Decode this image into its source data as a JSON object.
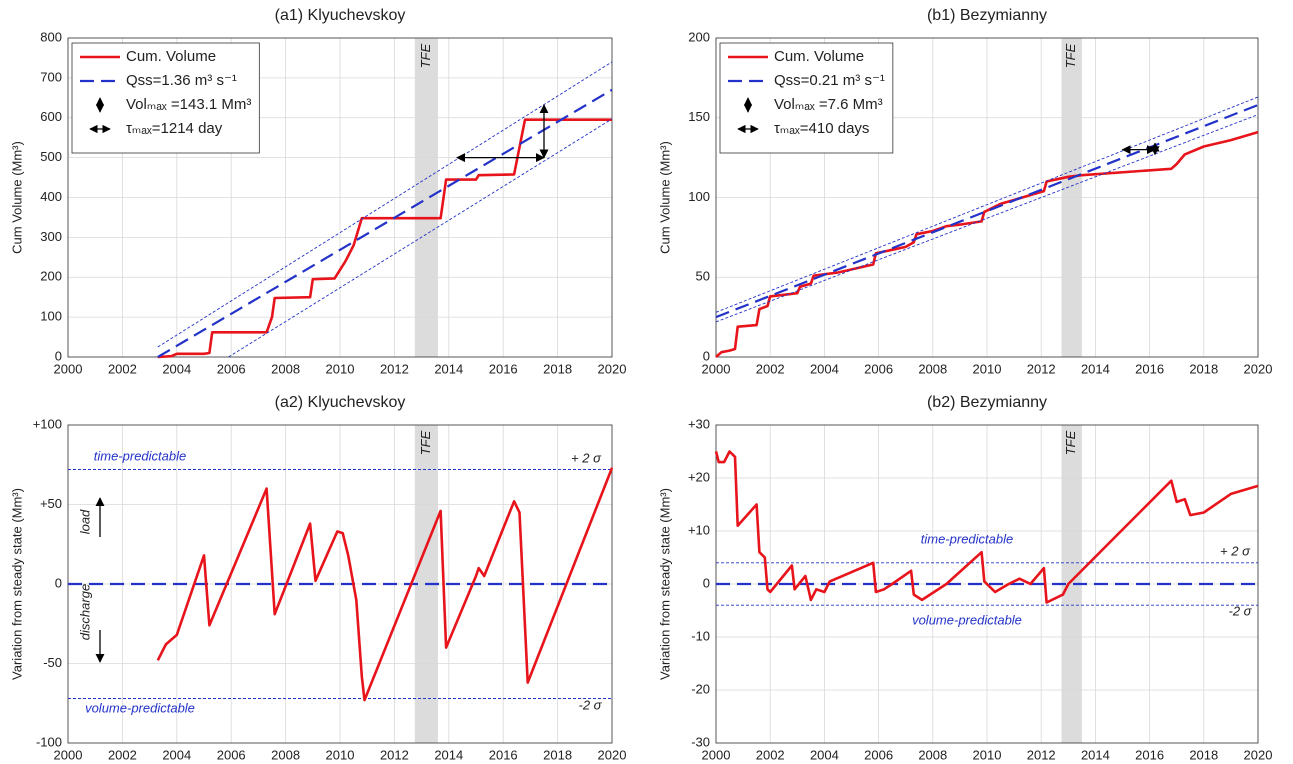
{
  "chart_data": [
    {
      "type": "line",
      "title": "(a1) Klyuchevskoy",
      "ylabel": "Cum Volume (Mm³)",
      "xlim": [
        2000,
        2020
      ],
      "xticks": [
        2000,
        2002,
        2004,
        2006,
        2008,
        2010,
        2012,
        2014,
        2016,
        2018,
        2020
      ],
      "ylim": [
        0,
        800
      ],
      "yticks": [
        0,
        100,
        200,
        300,
        400,
        500,
        600,
        700,
        800
      ],
      "grid": true,
      "legend": "upper left",
      "shade": {
        "x": [
          2012.75,
          2013.6
        ],
        "label": "TFE",
        "color": "#dcdcdc"
      },
      "series": [
        {
          "name": "Cum. Volume",
          "color": "#e8141b",
          "style": "solid",
          "x": [
            2003.3,
            2003.8,
            2004.0,
            2005.0,
            2005.2,
            2005.3,
            2007.3,
            2007.5,
            2007.6,
            2008.9,
            2009.0,
            2009.8,
            2010.2,
            2010.5,
            2010.8,
            2013.7,
            2013.9,
            2015.0,
            2015.1,
            2016.4,
            2016.8,
            2020
          ],
          "y": [
            0,
            2,
            8,
            8,
            10,
            62,
            62,
            100,
            148,
            150,
            195,
            197,
            240,
            280,
            348,
            348,
            445,
            445,
            456,
            458,
            595,
            595
          ]
        },
        {
          "name": "Qss=1.36 m³ s⁻¹",
          "color": "#2332c8",
          "style": "dashed",
          "x": [
            2003.3,
            2020
          ],
          "y": [
            0,
            670
          ]
        },
        {
          "color": "#2332c8",
          "style": "thin",
          "x": [
            2003.3,
            2020
          ],
          "y": [
            25,
            740
          ]
        },
        {
          "color": "#2332c8",
          "style": "thin",
          "x": [
            2005.9,
            2020
          ],
          "y": [
            0,
            597
          ]
        },
        {
          "name": "Volₘₐₓ =143.1 Mm³",
          "color": "#000000",
          "style": "varrow",
          "x": [
            2017.5,
            2017.5
          ],
          "y": [
            500,
            632
          ]
        },
        {
          "name": "τₘₐₓ=1214 day",
          "color": "#000000",
          "style": "harrow",
          "x": [
            2014.3,
            2017.5
          ],
          "y": [
            500,
            500
          ]
        }
      ]
    },
    {
      "type": "line",
      "title": "(b1) Bezymianny",
      "ylabel": "Cum Volume (Mm³)",
      "xlim": [
        2000,
        2020
      ],
      "xticks": [
        2000,
        2002,
        2004,
        2006,
        2008,
        2010,
        2012,
        2014,
        2016,
        2018,
        2020
      ],
      "ylim": [
        0,
        200
      ],
      "yticks": [
        0,
        50,
        100,
        150,
        200
      ],
      "grid": true,
      "legend": "upper left",
      "shade": {
        "x": [
          2012.75,
          2013.5
        ],
        "label": "TFE",
        "color": "#dcdcdc"
      },
      "series": [
        {
          "name": "Cum. Volume",
          "color": "#e8141b",
          "style": "solid",
          "x": [
            2000,
            2000.2,
            2000.5,
            2000.7,
            2000.8,
            2001.5,
            2001.6,
            2001.9,
            2002.0,
            2003.0,
            2003.1,
            2003.5,
            2003.6,
            2004.5,
            2005.8,
            2005.9,
            2007.0,
            2007.3,
            2007.4,
            2008.0,
            2008.5,
            2009.0,
            2009.8,
            2009.9,
            2010.5,
            2011.5,
            2012.1,
            2012.2,
            2013.0,
            2013.5,
            2016.8,
            2017.0,
            2017.3,
            2018,
            2019,
            2020
          ],
          "y": [
            0,
            3,
            4,
            5,
            19,
            20,
            30,
            32,
            38,
            40,
            44,
            46,
            51,
            53,
            58,
            65,
            69,
            72,
            77,
            79,
            82,
            83,
            85,
            91,
            96,
            101,
            104,
            110,
            113,
            114,
            118,
            121,
            127,
            132,
            136,
            141
          ]
        },
        {
          "name": "Qss=0.21 m³ s⁻¹",
          "color": "#2332c8",
          "style": "dashed",
          "x": [
            2000,
            2020
          ],
          "y": [
            25,
            158
          ]
        },
        {
          "color": "#2332c8",
          "style": "thin",
          "x": [
            2000,
            2020
          ],
          "y": [
            28,
            163
          ]
        },
        {
          "color": "#2332c8",
          "style": "thin",
          "x": [
            2000,
            2020
          ],
          "y": [
            22,
            152
          ]
        },
        {
          "name": "Volₘₐₓ =7.6 Mm³",
          "color": "#000000",
          "style": "varrow",
          "x": [
            2016.2,
            2016.2
          ],
          "y": [
            127,
            134
          ]
        },
        {
          "name": "τₘₐₓ=410 days",
          "color": "#000000",
          "style": "harrow",
          "x": [
            2015.0,
            2016.2
          ],
          "y": [
            130,
            130
          ]
        }
      ]
    },
    {
      "type": "line",
      "title": "(a2) Klyuchevskoy",
      "ylabel": "Variation from steady state  (Mm³)",
      "xlim": [
        2000,
        2020
      ],
      "xticks": [
        2000,
        2002,
        2004,
        2006,
        2008,
        2010,
        2012,
        2014,
        2016,
        2018,
        2020
      ],
      "ylim": [
        -100,
        100
      ],
      "yticks": [
        -100,
        -50,
        0,
        {
          "value": 50,
          "label": "+50"
        },
        {
          "value": 100,
          "label": "+100"
        }
      ],
      "grid": true,
      "shade": {
        "x": [
          2012.75,
          2013.6
        ],
        "label": "TFE",
        "color": "#dcdcdc"
      },
      "annotations": [
        "time-predictable",
        "volume-predictable",
        "+ 2 σ",
        "-2 σ",
        "load",
        "discharge"
      ],
      "series": [
        {
          "color": "#2332c8",
          "style": "thin",
          "x": [
            2000,
            2020
          ],
          "y": [
            72,
            72
          ]
        },
        {
          "color": "#2332c8",
          "style": "thin",
          "x": [
            2000,
            2020
          ],
          "y": [
            -72,
            -72
          ]
        },
        {
          "color": "#2332c8",
          "style": "dashed",
          "x": [
            2000,
            2020
          ],
          "y": [
            0,
            0
          ]
        },
        {
          "color": "#e8141b",
          "style": "solid",
          "x": [
            2003.3,
            2003.6,
            2004.0,
            2005.0,
            2005.2,
            2007.3,
            2007.6,
            2008.9,
            2009.1,
            2009.9,
            2010.1,
            2010.3,
            2010.6,
            2010.8,
            2010.9,
            2013.7,
            2013.9,
            2015.0,
            2015.1,
            2015.3,
            2016.4,
            2016.6,
            2016.9,
            2020
          ],
          "y": [
            -48,
            -38,
            -32,
            18,
            -26,
            60,
            -19,
            38,
            2,
            33,
            32,
            18,
            -10,
            -58,
            -73,
            46,
            -40,
            5,
            10,
            5,
            52,
            45,
            -62,
            73
          ]
        }
      ]
    },
    {
      "type": "line",
      "title": "(b2) Bezymianny",
      "ylabel": "Variation from steady state  (Mm³)",
      "xlim": [
        2000,
        2020
      ],
      "xticks": [
        2000,
        2002,
        2004,
        2006,
        2008,
        2010,
        2012,
        2014,
        2016,
        2018,
        2020
      ],
      "ylim": [
        -30,
        30
      ],
      "yticks": [
        -30,
        -20,
        -10,
        0,
        {
          "value": 10,
          "label": "+10"
        },
        {
          "value": 20,
          "label": "+20"
        },
        {
          "value": 30,
          "label": "+30"
        }
      ],
      "grid": true,
      "shade": {
        "x": [
          2012.75,
          2013.5
        ],
        "label": "TFE",
        "color": "#dcdcdc"
      },
      "annotations": [
        "time-predictable",
        "volume-predictable",
        "+ 2 σ",
        "-2 σ"
      ],
      "series": [
        {
          "color": "#2332c8",
          "style": "thin",
          "x": [
            2000,
            2020
          ],
          "y": [
            4,
            4
          ]
        },
        {
          "color": "#2332c8",
          "style": "thin",
          "x": [
            2000,
            2020
          ],
          "y": [
            -4,
            -4
          ]
        },
        {
          "color": "#2332c8",
          "style": "dashed",
          "x": [
            2000,
            2020
          ],
          "y": [
            0,
            0
          ]
        },
        {
          "color": "#e8141b",
          "style": "solid",
          "x": [
            2000,
            2000.1,
            2000.3,
            2000.5,
            2000.7,
            2000.8,
            2001.5,
            2001.6,
            2001.8,
            2001.9,
            2002.0,
            2002.8,
            2002.9,
            2003.3,
            2003.5,
            2003.7,
            2004,
            2004.2,
            2005.8,
            2005.9,
            2006.2,
            2006.5,
            2007.2,
            2007.3,
            2007.6,
            2008.5,
            2009.8,
            2009.9,
            2010.3,
            2010.8,
            2011.2,
            2011.6,
            2012.1,
            2012.2,
            2012.8,
            2013.0,
            2016.8,
            2017.0,
            2017.3,
            2017.5,
            2018,
            2019,
            2020
          ],
          "y": [
            25,
            23,
            23,
            25,
            24,
            11,
            15,
            6,
            5,
            -1,
            -1.5,
            3.5,
            -1,
            1.5,
            -3,
            -1,
            -1.5,
            0.5,
            4,
            -1.5,
            -1,
            0,
            2.5,
            -2,
            -3,
            0,
            6,
            0.5,
            -1.5,
            0,
            1,
            0,
            3,
            -3.5,
            -2,
            0,
            19.5,
            15.5,
            16,
            13,
            13.5,
            17,
            18.5
          ]
        }
      ]
    }
  ]
}
